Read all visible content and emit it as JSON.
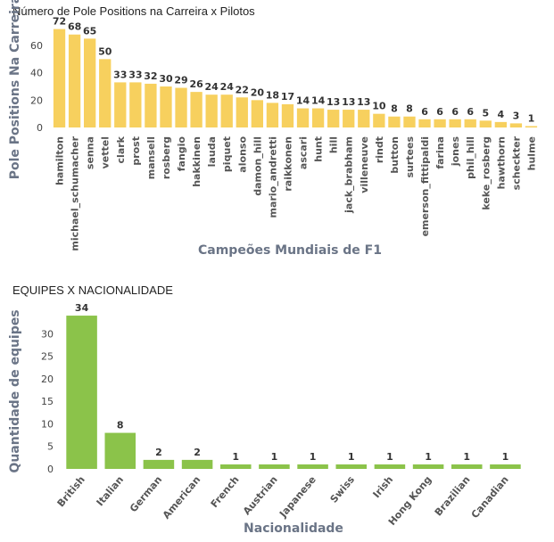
{
  "chart_data": [
    {
      "type": "bar",
      "title": "Número de Pole Positions na Carreira x Pilotos",
      "xlabel": "Campeões Mundiais de F1",
      "ylabel": "Pole Positions Na Carreira",
      "ylim": [
        0,
        75
      ],
      "yticks": [
        0,
        20,
        40,
        60
      ],
      "grid": false,
      "color": "#f7d05e",
      "categories": [
        "hamilton",
        "michael_schumacher",
        "senna",
        "vettel",
        "clark",
        "prost",
        "mansell",
        "rosberg",
        "fangio",
        "hakkinen",
        "lauda",
        "piquet",
        "alonso",
        "damon_hill",
        "mario_andretti",
        "raikkonen",
        "ascari",
        "hunt",
        "hill",
        "jack_brabham",
        "villeneuve",
        "rindt",
        "button",
        "surtees",
        "emerson_fittipaldi",
        "farina",
        "jones",
        "phil_hill",
        "keke_rosberg",
        "hawthorn",
        "scheckter",
        "hulme"
      ],
      "values": [
        72,
        68,
        65,
        50,
        33,
        33,
        32,
        30,
        29,
        26,
        24,
        24,
        22,
        20,
        18,
        17,
        14,
        14,
        13,
        13,
        13,
        10,
        8,
        8,
        6,
        6,
        6,
        6,
        5,
        4,
        3,
        1
      ]
    },
    {
      "type": "bar",
      "title": "EQUIPES X NACIONALIDADE",
      "xlabel": "Nacionalidade",
      "ylabel": "Quantidade de equipes",
      "ylim": [
        0,
        35
      ],
      "yticks": [
        0,
        5,
        10,
        15,
        20,
        25,
        30
      ],
      "grid": false,
      "color": "#8bc34a",
      "categories": [
        "British",
        "Italian",
        "German",
        "American",
        "French",
        "Austrian",
        "Japanese",
        "Swiss",
        "Irish",
        "Hong Kong",
        "Brazilian",
        "Canadian"
      ],
      "values": [
        34,
        8,
        2,
        2,
        1,
        1,
        1,
        1,
        1,
        1,
        1,
        1
      ]
    }
  ]
}
